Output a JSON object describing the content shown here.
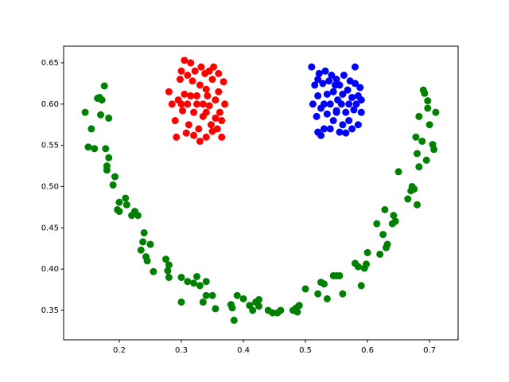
{
  "chart_data": {
    "type": "scatter",
    "xlim": [
      0.1103,
      0.746
    ],
    "ylim": [
      0.3143,
      0.6702
    ],
    "xticks": [
      0.2,
      0.3,
      0.4,
      0.5,
      0.6,
      0.7
    ],
    "yticks": [
      0.35,
      {
        "value": 0.4,
        "label": "0.40"
      },
      0.45,
      {
        "value": 0.5,
        "label": "0.50"
      },
      0.55,
      {
        "value": 0.6,
        "label": "0.60"
      },
      0.65
    ],
    "series": [
      {
        "color": "#ff0000",
        "x": [
          0.28,
          0.285,
          0.29,
          0.292,
          0.295,
          0.298,
          0.3,
          0.302,
          0.305,
          0.305,
          0.308,
          0.31,
          0.312,
          0.315,
          0.315,
          0.318,
          0.32,
          0.32,
          0.322,
          0.325,
          0.328,
          0.33,
          0.33,
          0.332,
          0.335,
          0.335,
          0.338,
          0.34,
          0.34,
          0.342,
          0.345,
          0.345,
          0.348,
          0.35,
          0.35,
          0.352,
          0.355,
          0.355,
          0.358,
          0.36,
          0.36,
          0.362,
          0.365,
          0.365,
          0.368,
          0.37,
          0.3,
          0.31,
          0.325,
          0.34
        ],
        "values": [
          0.615,
          0.6,
          0.58,
          0.56,
          0.605,
          0.63,
          0.64,
          0.592,
          0.653,
          0.612,
          0.565,
          0.635,
          0.575,
          0.61,
          0.65,
          0.628,
          0.59,
          0.562,
          0.64,
          0.6,
          0.57,
          0.623,
          0.555,
          0.645,
          0.6,
          0.585,
          0.637,
          0.618,
          0.56,
          0.61,
          0.598,
          0.64,
          0.575,
          0.63,
          0.567,
          0.645,
          0.605,
          0.583,
          0.57,
          0.615,
          0.637,
          0.59,
          0.58,
          0.56,
          0.627,
          0.6,
          0.6,
          0.6,
          0.61,
          0.59
        ]
      },
      {
        "color": "#0000ff",
        "x": [
          0.51,
          0.512,
          0.515,
          0.518,
          0.52,
          0.52,
          0.522,
          0.525,
          0.525,
          0.528,
          0.53,
          0.53,
          0.532,
          0.535,
          0.535,
          0.538,
          0.54,
          0.54,
          0.542,
          0.545,
          0.545,
          0.548,
          0.55,
          0.55,
          0.552,
          0.555,
          0.555,
          0.558,
          0.56,
          0.56,
          0.562,
          0.565,
          0.565,
          0.568,
          0.57,
          0.57,
          0.572,
          0.575,
          0.575,
          0.578,
          0.58,
          0.58,
          0.582,
          0.585,
          0.585,
          0.588,
          0.59,
          0.59,
          0.52,
          0.55
        ],
        "values": [
          0.645,
          0.6,
          0.623,
          0.585,
          0.566,
          0.61,
          0.637,
          0.595,
          0.562,
          0.625,
          0.6,
          0.57,
          0.64,
          0.612,
          0.588,
          0.628,
          0.57,
          0.6,
          0.635,
          0.615,
          0.58,
          0.623,
          0.592,
          0.63,
          0.605,
          0.566,
          0.623,
          0.6,
          0.575,
          0.612,
          0.635,
          0.59,
          0.565,
          0.617,
          0.6,
          0.58,
          0.628,
          0.608,
          0.57,
          0.593,
          0.645,
          0.625,
          0.6,
          0.61,
          0.575,
          0.62,
          0.605,
          0.59,
          0.63,
          0.59
        ]
      },
      {
        "color": "#008000",
        "x": [
          0.145,
          0.15,
          0.155,
          0.16,
          0.165,
          0.168,
          0.17,
          0.172,
          0.176,
          0.178,
          0.18,
          0.18,
          0.183,
          0.183,
          0.19,
          0.193,
          0.197,
          0.2,
          0.2,
          0.21,
          0.212,
          0.22,
          0.225,
          0.23,
          0.235,
          0.238,
          0.24,
          0.243,
          0.245,
          0.25,
          0.255,
          0.275,
          0.278,
          0.28,
          0.28,
          0.3,
          0.3,
          0.31,
          0.32,
          0.325,
          0.33,
          0.335,
          0.34,
          0.34,
          0.35,
          0.355,
          0.38,
          0.382,
          0.385,
          0.39,
          0.4,
          0.41,
          0.415,
          0.42,
          0.425,
          0.425,
          0.44,
          0.447,
          0.455,
          0.46,
          0.48,
          0.485,
          0.487,
          0.49,
          0.5,
          0.52,
          0.525,
          0.53,
          0.535,
          0.545,
          0.55,
          0.555,
          0.56,
          0.58,
          0.585,
          0.59,
          0.595,
          0.598,
          0.6,
          0.615,
          0.62,
          0.625,
          0.628,
          0.63,
          0.632,
          0.64,
          0.642,
          0.645,
          0.65,
          0.665,
          0.67,
          0.672,
          0.675,
          0.68,
          0.678,
          0.68,
          0.683,
          0.683,
          0.688,
          0.69,
          0.692,
          0.695,
          0.697,
          0.697,
          0.7,
          0.705,
          0.707,
          0.71
        ],
        "values": [
          0.59,
          0.548,
          0.57,
          0.546,
          0.607,
          0.608,
          0.587,
          0.605,
          0.622,
          0.546,
          0.52,
          0.525,
          0.535,
          0.583,
          0.502,
          0.512,
          0.472,
          0.481,
          0.47,
          0.486,
          0.478,
          0.465,
          0.47,
          0.465,
          0.423,
          0.433,
          0.444,
          0.415,
          0.41,
          0.43,
          0.397,
          0.412,
          0.398,
          0.39,
          0.405,
          0.39,
          0.36,
          0.385,
          0.383,
          0.391,
          0.38,
          0.36,
          0.385,
          0.368,
          0.368,
          0.352,
          0.357,
          0.353,
          0.338,
          0.368,
          0.364,
          0.356,
          0.35,
          0.36,
          0.363,
          0.355,
          0.35,
          0.347,
          0.347,
          0.35,
          0.35,
          0.353,
          0.348,
          0.356,
          0.376,
          0.37,
          0.384,
          0.382,
          0.364,
          0.392,
          0.392,
          0.392,
          0.37,
          0.407,
          0.403,
          0.38,
          0.401,
          0.406,
          0.42,
          0.455,
          0.418,
          0.442,
          0.472,
          0.426,
          0.43,
          0.455,
          0.465,
          0.458,
          0.518,
          0.485,
          0.495,
          0.5,
          0.497,
          0.478,
          0.56,
          0.54,
          0.524,
          0.585,
          0.555,
          0.617,
          0.613,
          0.532,
          0.595,
          0.604,
          0.575,
          0.551,
          0.545,
          0.59
        ]
      }
    ]
  }
}
